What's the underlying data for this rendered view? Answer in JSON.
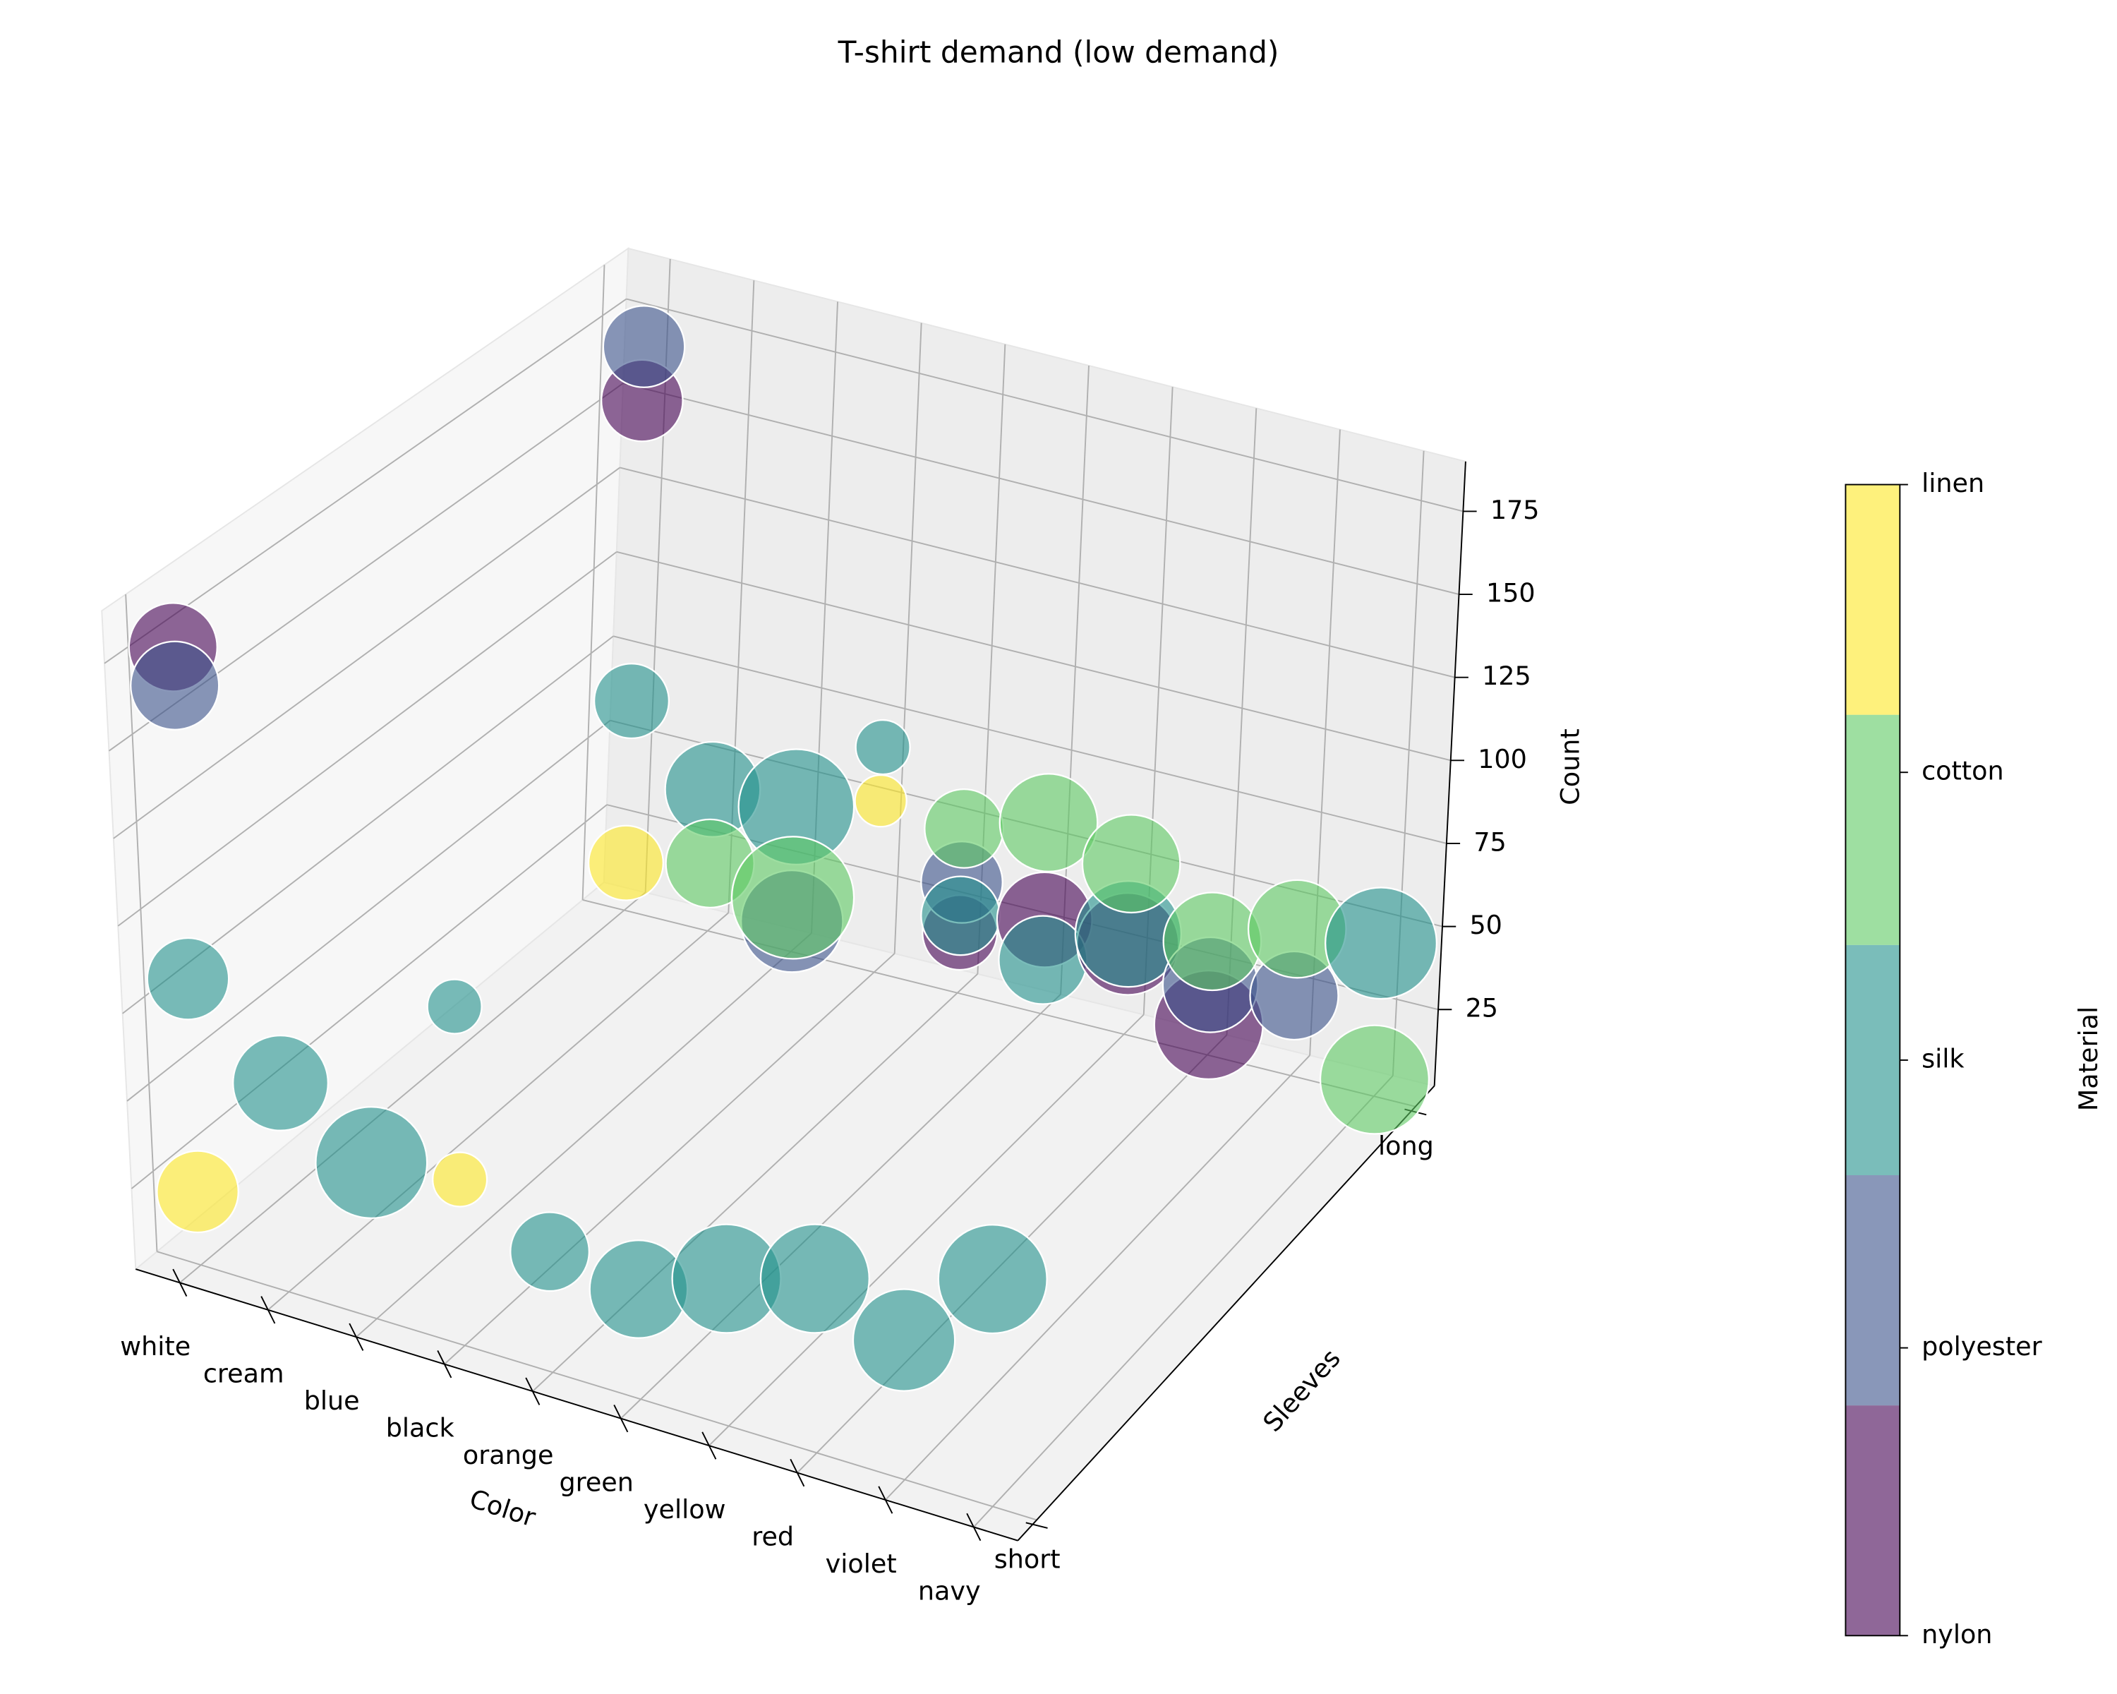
{
  "chart_data": {
    "type": "scatter3d",
    "title": "T-shirt demand (low demand)",
    "xlabel": "Color",
    "ylabel": "Sleeves",
    "zlabel": "Count",
    "colorbar_label": "Material",
    "x_categories": [
      "white",
      "cream",
      "blue",
      "black",
      "orange",
      "green",
      "yellow",
      "red",
      "violet",
      "navy"
    ],
    "y_categories": [
      "short",
      "long"
    ],
    "xlim": [
      -0.5,
      9.5
    ],
    "ylim": [
      -0.05,
      1.05
    ],
    "zlim": [
      2,
      190
    ],
    "zticks": [
      25,
      50,
      75,
      100,
      125,
      150,
      175
    ],
    "grid": true,
    "alpha": 0.6,
    "series": [
      {
        "name": "nylon",
        "color": "#440154",
        "x": [
          "white",
          "white",
          "green",
          "yellow",
          "orange",
          "red"
        ],
        "y": [
          "short",
          "long",
          "long",
          "long",
          "long",
          "long"
        ],
        "z": [
          179,
          153,
          30,
          29,
          20,
          11
        ],
        "sizes": [
          65,
          60,
          70,
          75,
          55,
          80
        ]
      },
      {
        "name": "polyester",
        "color": "#3b528b",
        "x": [
          "white",
          "white",
          "blue",
          "orange",
          "red",
          "violet"
        ],
        "y": [
          "short",
          "long",
          "long",
          "long",
          "long",
          "long"
        ],
        "z": [
          168,
          169,
          11,
          35,
          23,
          26
        ],
        "sizes": [
          65,
          60,
          75,
          60,
          70,
          65
        ]
      },
      {
        "name": "silk",
        "color": "#21918c",
        "x": [
          "white",
          "cream",
          "blue",
          "black",
          "orange",
          "green",
          "yellow",
          "red",
          "violet",
          "navy",
          "white",
          "cream",
          "blue",
          "black",
          "orange",
          "green",
          "yellow",
          "navy"
        ],
        "y": [
          "short",
          "short",
          "short",
          "short",
          "short",
          "short",
          "short",
          "short",
          "short",
          "short",
          "long",
          "long",
          "long",
          "long",
          "long",
          "long",
          "long",
          "long"
        ],
        "z": [
          84,
          62,
          47,
          100,
          37,
          34,
          45,
          53,
          43,
          69,
          64,
          44,
          45,
          69,
          25,
          18,
          32,
          48
        ],
        "sizes": [
          60,
          70,
          82,
          40,
          58,
          72,
          80,
          80,
          75,
          80,
          55,
          70,
          85,
          40,
          58,
          65,
          78,
          82
        ]
      },
      {
        "name": "cotton",
        "color": "#5ec962",
        "x": [
          "cream",
          "blue",
          "orange",
          "green",
          "yellow",
          "red",
          "violet",
          "navy"
        ],
        "y": [
          "long",
          "long",
          "long",
          "long",
          "long",
          "long",
          "long",
          "long"
        ],
        "z": [
          22,
          18,
          51,
          59,
          53,
          36,
          46,
          7
        ],
        "sizes": [
          65,
          90,
          58,
          72,
          72,
          72,
          72,
          80
        ]
      },
      {
        "name": "linen",
        "color": "#fde725",
        "x": [
          "white",
          "black",
          "white",
          "black"
        ],
        "y": [
          "short",
          "short",
          "long",
          "long"
        ],
        "z": [
          23,
          50,
          16,
          53
        ],
        "sizes": [
          60,
          40,
          55,
          38
        ]
      }
    ]
  }
}
